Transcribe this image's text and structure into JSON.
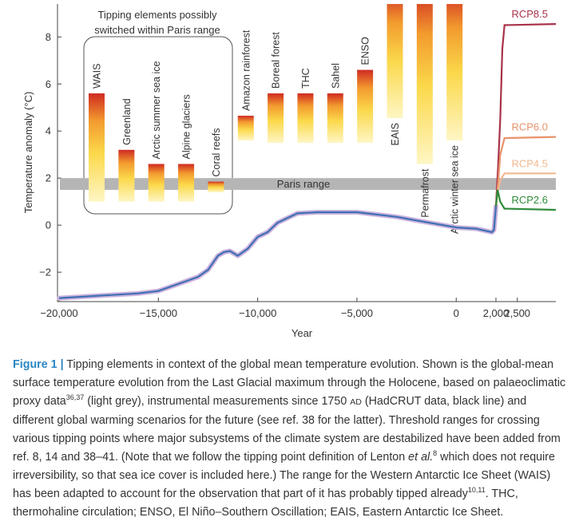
{
  "chart_data": {
    "type": "line",
    "ylabel": "Temperature anomaly (°C)",
    "xlabel": "Year",
    "xlim": [
      -20000,
      3400
    ],
    "x_scale_change_at": 2000,
    "ylim": [
      -3.25,
      9.4
    ],
    "yticks": [
      {
        "value": -2,
        "label": "−2"
      },
      0,
      2,
      4,
      6,
      8
    ],
    "xticks": [
      {
        "value": -20000,
        "label": "−20,000"
      },
      {
        "value": -15000,
        "label": "−15,000"
      },
      {
        "value": -10000,
        "label": "−10,000"
      },
      {
        "value": -5000,
        "label": "−5,000"
      },
      0,
      {
        "value": 2000,
        "label": "2,000"
      },
      {
        "value": 2500,
        "label": "2,500"
      }
    ],
    "paris_range": {
      "label": "Paris range",
      "values": [
        1.5,
        2.0
      ],
      "color": "#b5b5b5"
    },
    "box_title": [
      "Tipping elements possibly",
      "switched within Paris range"
    ],
    "tipping_elements": [
      {
        "name": "WAIS",
        "low": 1.0,
        "high": 5.6
      },
      {
        "name": "Greenland",
        "low": 1.0,
        "high": 3.2
      },
      {
        "name": "Arctic summer sea ice",
        "low": 1.0,
        "high": 2.6
      },
      {
        "name": "Alpine glaciers",
        "low": 1.0,
        "high": 2.6
      },
      {
        "name": "Coral reefs",
        "low": 1.4,
        "high": 1.85
      },
      {
        "name": "Amazon rainforest",
        "low": 3.6,
        "high": 4.65
      },
      {
        "name": "Boreal forest",
        "low": 3.5,
        "high": 5.6
      },
      {
        "name": "THC",
        "low": 3.5,
        "high": 5.6
      },
      {
        "name": "Sahel",
        "low": 3.5,
        "high": 5.6
      },
      {
        "name": "ENSO",
        "low": 3.5,
        "high": 6.6
      },
      {
        "name": "EAIS",
        "low": 4.55,
        "high": 10
      },
      {
        "name": "Permafrost",
        "low": 2.6,
        "high": 10
      },
      {
        "name": "Arctic winter sea ice",
        "low": 3.6,
        "high": 10
      }
    ],
    "series": [
      {
        "color": "#3e6fb4",
        "x": [
          -20000,
          -19000,
          -18000,
          -17000,
          -16000,
          -15000,
          -14000,
          -13500,
          -13000,
          -12500,
          -12000,
          -11700,
          -11400,
          -11000,
          -10500,
          -10000,
          -9500,
          -9000,
          -8500,
          -8000,
          -7000,
          -6000,
          -5000,
          -4000,
          -3000,
          -2000,
          -1000,
          0,
          1000,
          1800,
          1900,
          2000
        ],
        "values": [
          -3.1,
          -3.05,
          -3.0,
          -2.95,
          -2.9,
          -2.8,
          -2.5,
          -2.35,
          -2.2,
          -1.9,
          -1.3,
          -1.15,
          -1.1,
          -1.3,
          -1.0,
          -0.5,
          -0.3,
          0.1,
          0.3,
          0.5,
          0.55,
          0.55,
          0.55,
          0.45,
          0.35,
          0.2,
          0.05,
          -0.1,
          -0.15,
          -0.3,
          -0.2,
          0.8
        ]
      }
    ],
    "scenarios": [
      {
        "name": "RCP8.5",
        "color": "#a8324a",
        "x": [
          2000,
          2050,
          2100,
          2150,
          2200,
          3400
        ],
        "values": [
          0.8,
          2.5,
          4.5,
          7.5,
          8.5,
          8.55
        ]
      },
      {
        "name": "RCP6.0",
        "color": "#e8926a",
        "x": [
          2000,
          2050,
          2100,
          2200,
          3400
        ],
        "values": [
          0.8,
          1.8,
          3.0,
          3.7,
          3.75
        ]
      },
      {
        "name": "RCP4.5",
        "color": "#f2b98f",
        "x": [
          2000,
          2050,
          2100,
          2200,
          3400
        ],
        "values": [
          0.8,
          1.5,
          1.9,
          2.2,
          2.2
        ]
      },
      {
        "name": "RCP2.6",
        "color": "#2e8b3a",
        "x": [
          2000,
          2040,
          2100,
          2200,
          3400
        ],
        "values": [
          0.8,
          1.5,
          1.0,
          0.7,
          0.65
        ]
      }
    ]
  },
  "caption": {
    "runs": [
      {
        "text": "Figure 1 |",
        "style": "label"
      },
      {
        "text": " Tipping elements in context of the global mean temperature evolution. Shown is the global-mean surface temperature evolution from the Last Glacial maximum through the Holocene, based on palaeoclimatic proxy data",
        "style": "normal"
      },
      {
        "text": "36,37",
        "style": "sup"
      },
      {
        "text": " (light grey), instrumental measurements since 1750 ",
        "style": "normal"
      },
      {
        "text": "AD",
        "style": "smallcaps"
      },
      {
        "text": " (HadCRUT data, black line) and different global warming scenarios for the future (see ref. 38 for the latter). Threshold ranges for crossing various tipping points where major subsystems of the climate system are destabilized have been added from ref. 8, 14 and 38–41. (Note that we follow the tipping point definition of Lenton ",
        "style": "normal"
      },
      {
        "text": "et al.",
        "style": "italic"
      },
      {
        "text": "8",
        "style": "sup"
      },
      {
        "text": " which does not require irreversibility, so that sea ice cover is included here.) The range for the Western Antarctic Ice Sheet (WAIS) has been adapted to account for the observation that part of it has probably tipped already",
        "style": "normal"
      },
      {
        "text": "10,11",
        "style": "sup"
      },
      {
        "text": ". THC, thermohaline circulation; ENSO, El Niño–Southern Oscillation; EAIS, Eastern Antarctic Ice Sheet.",
        "style": "normal"
      }
    ]
  }
}
